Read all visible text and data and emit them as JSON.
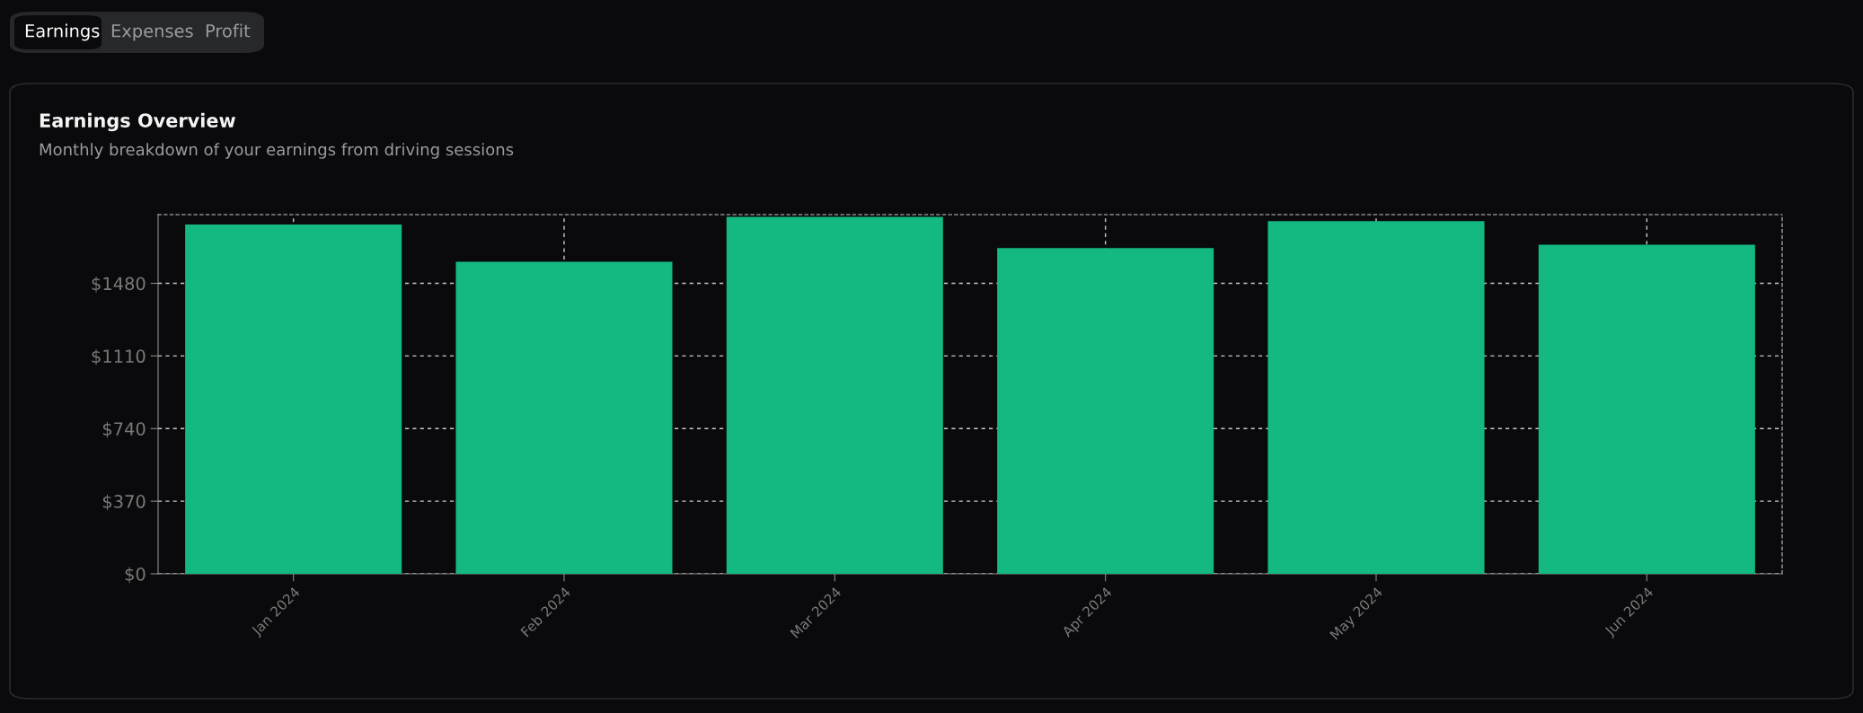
{
  "chart_data": {
    "type": "bar",
    "title": "Earnings Overview",
    "subtitle": "Monthly breakdown of your earnings from driving sessions",
    "annotations": [
      "Earnings",
      "Expenses",
      "Profit"
    ],
    "categories": [
      "Jan 2024",
      "Feb 2024",
      "Mar 2024",
      "Apr 2024",
      "May 2024",
      "Jun 2024"
    ],
    "values": [
      1780,
      1590,
      1818,
      1660,
      1797,
      1677
    ],
    "color": "#13b981",
    "ylim": [
      0,
      1830
    ],
    "yticks": [
      {
        "value": 0,
        "label": "$0"
      },
      {
        "value": 370,
        "label": "$370"
      },
      {
        "value": 740,
        "label": "$740"
      },
      {
        "value": 1110,
        "label": "$1110"
      },
      {
        "value": 1480,
        "label": "$1480"
      }
    ],
    "grid": true
  }
}
